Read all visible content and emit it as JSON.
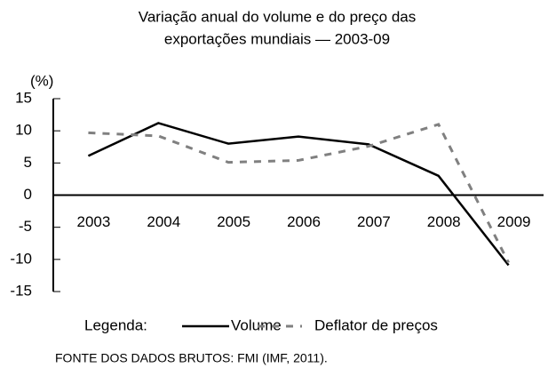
{
  "chart_data": {
    "type": "line",
    "title": [
      "Variação anual do volume e do preço das",
      "exportações mundiais — 2003-09"
    ],
    "y_label": "(%)",
    "categories": [
      "2003",
      "2004",
      "2005",
      "2006",
      "2007",
      "2008",
      "2009"
    ],
    "series": [
      {
        "name": "Volume",
        "color": "#000000",
        "dash": "solid",
        "values": [
          6.1,
          11.2,
          8.0,
          9.1,
          7.9,
          3.0,
          -10.9
        ]
      },
      {
        "name": "Deflator de preços",
        "color": "#808080",
        "dash": "dashed",
        "values": [
          9.7,
          9.2,
          5.1,
          5.4,
          7.6,
          11.0,
          -10.5
        ]
      }
    ],
    "ylim": [
      -15,
      15
    ],
    "yticks": [
      -15,
      -10,
      -5,
      0,
      5,
      10,
      15
    ],
    "legend_title": "Legenda:",
    "legend": "bottom",
    "source": "FONTE DOS DADOS BRUTOS: FMI (IMF, 2011)."
  }
}
